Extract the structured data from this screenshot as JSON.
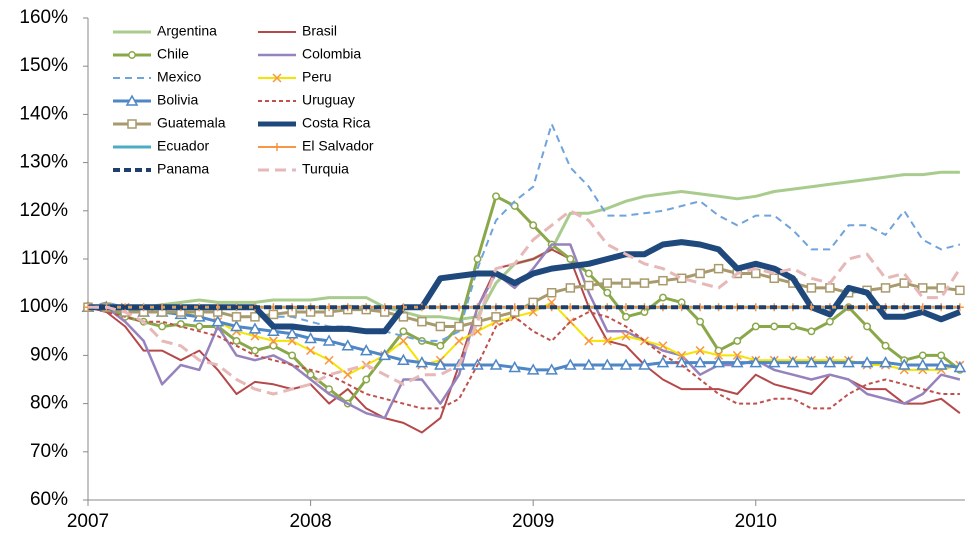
{
  "chart_data": {
    "type": "line",
    "x": [
      2007,
      2007.083,
      2007.167,
      2007.25,
      2007.333,
      2007.417,
      2007.5,
      2007.583,
      2007.667,
      2007.75,
      2007.833,
      2007.917,
      2008,
      2008.083,
      2008.167,
      2008.25,
      2008.333,
      2008.417,
      2008.5,
      2008.583,
      2008.667,
      2008.75,
      2008.833,
      2008.917,
      2009,
      2009.083,
      2009.167,
      2009.25,
      2009.333,
      2009.417,
      2009.5,
      2009.583,
      2009.667,
      2009.75,
      2009.833,
      2009.917,
      2010,
      2010.083,
      2010.167,
      2010.25,
      2010.333,
      2010.417,
      2010.5,
      2010.583,
      2010.667,
      2010.75,
      2010.833,
      2010.917
    ],
    "xlim": [
      2007,
      2010.94
    ],
    "xticks": [
      2007,
      2008,
      2009,
      2010
    ],
    "ylim": [
      60,
      160
    ],
    "yticks": [
      {
        "value": 60,
        "label": "60%"
      },
      {
        "value": 70,
        "label": "70%"
      },
      {
        "value": 80,
        "label": "80%"
      },
      {
        "value": 90,
        "label": "90%"
      },
      {
        "value": 100,
        "label": "100%"
      },
      {
        "value": 110,
        "label": "110%"
      },
      {
        "value": 120,
        "label": "120%"
      },
      {
        "value": 130,
        "label": "130%"
      },
      {
        "value": 140,
        "label": "140%"
      },
      {
        "value": 150,
        "label": "150%"
      },
      {
        "value": 160,
        "label": "160%"
      }
    ],
    "grid": false,
    "legend": "top-left",
    "series": [
      {
        "name": "Argentina",
        "color": "#a9cc8e",
        "width": 3,
        "values": [
          100,
          100,
          100,
          100,
          100.5,
          101,
          101.5,
          101,
          101,
          101,
          101.5,
          101.5,
          101.5,
          102,
          102,
          102,
          100,
          99,
          98,
          98,
          97.5,
          98,
          105,
          109,
          110,
          112,
          119.5,
          119.5,
          120.5,
          122,
          123,
          123.5,
          124,
          123.5,
          123,
          122.5,
          123,
          124,
          124.5,
          125,
          125.5,
          126,
          126.5,
          127,
          127.5,
          127.5,
          128,
          128
        ]
      },
      {
        "name": "Brasil",
        "color": "#b5484a",
        "width": 2,
        "values": [
          100,
          99,
          96,
          91,
          91,
          89,
          91,
          87,
          82,
          84.5,
          84,
          83,
          84,
          80,
          83,
          79,
          77,
          76,
          74,
          77,
          88,
          100,
          108,
          109,
          110,
          112,
          110,
          100,
          93,
          92,
          88,
          85,
          83,
          83,
          83,
          82,
          86,
          84,
          83,
          82,
          86,
          85,
          83,
          83,
          80,
          80,
          81,
          78
        ]
      },
      {
        "name": "Chile",
        "color": "#8aa84a",
        "width": 3,
        "marker": "circle",
        "values": [
          100,
          100,
          98,
          97,
          96,
          96.5,
          96,
          96,
          93,
          91,
          92,
          90,
          86,
          83,
          80,
          85,
          90,
          95,
          93,
          92,
          96,
          110,
          123,
          121,
          117,
          113,
          110,
          107,
          103,
          98,
          99,
          102,
          101,
          97,
          91,
          93,
          96,
          96,
          96,
          95,
          97,
          100,
          96,
          92,
          89,
          90,
          90,
          87
        ]
      },
      {
        "name": "Colombia",
        "color": "#9683bd",
        "width": 2.5,
        "values": [
          100,
          100,
          97,
          93,
          84,
          88,
          87,
          96,
          90,
          89,
          90,
          88,
          85,
          82,
          80,
          78,
          77,
          85,
          85,
          80,
          86,
          100,
          107,
          104,
          108,
          113,
          113,
          103,
          95,
          95,
          93,
          91,
          90,
          86,
          88,
          88,
          89,
          87,
          86,
          85,
          86,
          85,
          82,
          81,
          80,
          82,
          86,
          85
        ]
      },
      {
        "name": "Mexico",
        "color": "#6fa3dc",
        "width": 2,
        "dash": "7,5",
        "values": [
          100,
          101,
          100,
          100,
          99,
          99,
          99,
          99,
          98,
          98,
          98,
          98,
          97,
          96,
          96,
          95,
          95,
          94,
          93,
          93,
          95,
          108,
          118,
          122,
          125,
          138,
          129,
          125,
          119,
          119,
          119.5,
          120,
          121,
          122,
          119,
          117,
          119,
          119,
          116,
          112,
          112,
          117,
          117,
          115,
          120,
          114,
          112,
          113
        ]
      },
      {
        "name": "Peru",
        "color": "#f5e400",
        "marker_color": "#f79646",
        "width": 2,
        "marker": "x",
        "values": [
          100,
          100,
          100,
          99,
          99,
          99,
          98,
          97,
          95,
          94,
          93,
          93,
          91,
          89,
          86,
          88,
          90,
          93,
          88,
          89,
          93,
          95,
          97,
          98,
          99,
          101,
          97,
          93,
          93,
          94,
          93,
          92,
          90,
          91,
          90,
          90,
          89,
          89,
          89,
          89,
          89,
          89,
          88,
          88,
          87,
          87,
          87,
          88
        ]
      },
      {
        "name": "Bolivia",
        "color": "#4f86c6",
        "width": 3,
        "marker": "triangle",
        "values": [
          100,
          100,
          99.5,
          99,
          99,
          98.5,
          98,
          97,
          96,
          95.5,
          95,
          94.5,
          93.5,
          93,
          92,
          91,
          90,
          89,
          88.5,
          88,
          88,
          88,
          88,
          87.5,
          87,
          87,
          88,
          88,
          88,
          88,
          88,
          88.5,
          88.5,
          88.5,
          88.5,
          88.5,
          88.5,
          88.5,
          88.5,
          88.5,
          88.5,
          88.5,
          88.5,
          88.5,
          88,
          88,
          88,
          87.5
        ]
      },
      {
        "name": "Uruguay",
        "color": "#c0504d",
        "width": 2,
        "dash": "4,3",
        "values": [
          100,
          99,
          98,
          97,
          97,
          96,
          95,
          94,
          92,
          90,
          89,
          88,
          87,
          86,
          84,
          82,
          81,
          80,
          79,
          79,
          81,
          88,
          96,
          98,
          95,
          93,
          97,
          99,
          98,
          96,
          93,
          90,
          88,
          85,
          82,
          80,
          80,
          81,
          81,
          79,
          79,
          82,
          84,
          85,
          84,
          83,
          82,
          82
        ]
      },
      {
        "name": "Guatemala",
        "color": "#a89a6c",
        "width": 3,
        "marker": "square",
        "values": [
          100,
          100,
          99,
          99,
          99,
          99,
          99,
          99,
          98,
          98,
          98.5,
          99,
          99,
          99,
          99.5,
          99.5,
          99,
          98,
          97,
          96,
          96,
          97,
          98,
          99,
          101,
          103,
          104,
          104.5,
          105,
          105,
          105,
          105.5,
          106,
          107,
          108,
          107,
          107,
          106,
          105,
          104,
          104,
          103,
          103.5,
          104,
          105,
          104,
          104,
          103.5
        ]
      },
      {
        "name": "Costa Rica",
        "color": "#1f497d",
        "width": 6,
        "values": [
          100,
          100,
          100,
          100,
          100,
          100,
          100,
          100,
          100,
          100,
          96,
          96,
          95.5,
          95.5,
          95.5,
          95,
          95,
          100,
          100,
          106,
          106.5,
          107,
          107,
          105,
          107,
          108,
          108.5,
          109,
          110,
          111,
          111,
          113,
          113.5,
          113,
          112,
          108,
          109,
          108,
          106,
          100,
          98.5,
          104,
          103,
          98,
          98,
          99,
          97.5,
          99
        ]
      },
      {
        "name": "Ecuador",
        "color": "#4bacc6",
        "width": 3,
        "values": [
          100,
          100,
          100,
          100,
          100,
          100,
          100,
          100,
          100,
          100,
          100,
          100,
          100,
          100,
          100,
          100,
          100,
          100,
          100,
          100,
          100,
          100,
          100,
          100,
          100,
          100,
          100,
          100,
          100,
          100,
          100,
          100,
          100,
          100,
          100,
          100,
          100,
          100,
          100,
          100,
          100,
          100,
          100,
          100,
          100,
          100,
          100,
          100
        ]
      },
      {
        "name": "El Salvador",
        "color": "#f79646",
        "width": 2,
        "marker": "plus",
        "values": [
          100,
          100,
          100,
          100,
          100,
          100,
          100,
          100,
          100,
          100,
          100,
          100,
          100,
          100,
          100,
          100,
          100,
          100,
          100,
          100,
          100,
          100,
          100,
          100,
          100,
          100,
          100,
          100,
          100,
          100,
          100,
          100,
          100,
          100,
          100,
          100,
          100,
          100,
          100,
          100,
          100,
          100,
          100,
          100,
          100,
          100,
          100,
          100
        ]
      },
      {
        "name": "Panama",
        "color": "#1f3f6a",
        "width": 4,
        "dash": "7,4",
        "values": [
          100,
          100,
          100,
          100,
          100,
          100,
          100,
          100,
          100,
          100,
          100,
          100,
          100,
          100,
          100,
          100,
          100,
          100,
          100,
          100,
          100,
          100,
          100,
          100,
          100,
          100,
          100,
          100,
          100,
          100,
          100,
          100,
          100,
          100,
          100,
          100,
          100,
          100,
          100,
          100,
          100,
          100,
          100,
          100,
          100,
          100,
          100,
          100
        ]
      },
      {
        "name": "Turquia",
        "color": "#e6b8b7",
        "width": 3,
        "dash": "11,6",
        "values": [
          100,
          100,
          99,
          97,
          93,
          92,
          89,
          88,
          85,
          83,
          82,
          83,
          84,
          86,
          87,
          88,
          86,
          84,
          86,
          86,
          88,
          97,
          108,
          109,
          114,
          117,
          120,
          118,
          113,
          111,
          109,
          108,
          106,
          105,
          104,
          107,
          108,
          107,
          108,
          106,
          105,
          110,
          111,
          106,
          107,
          102,
          102,
          108
        ]
      }
    ]
  }
}
